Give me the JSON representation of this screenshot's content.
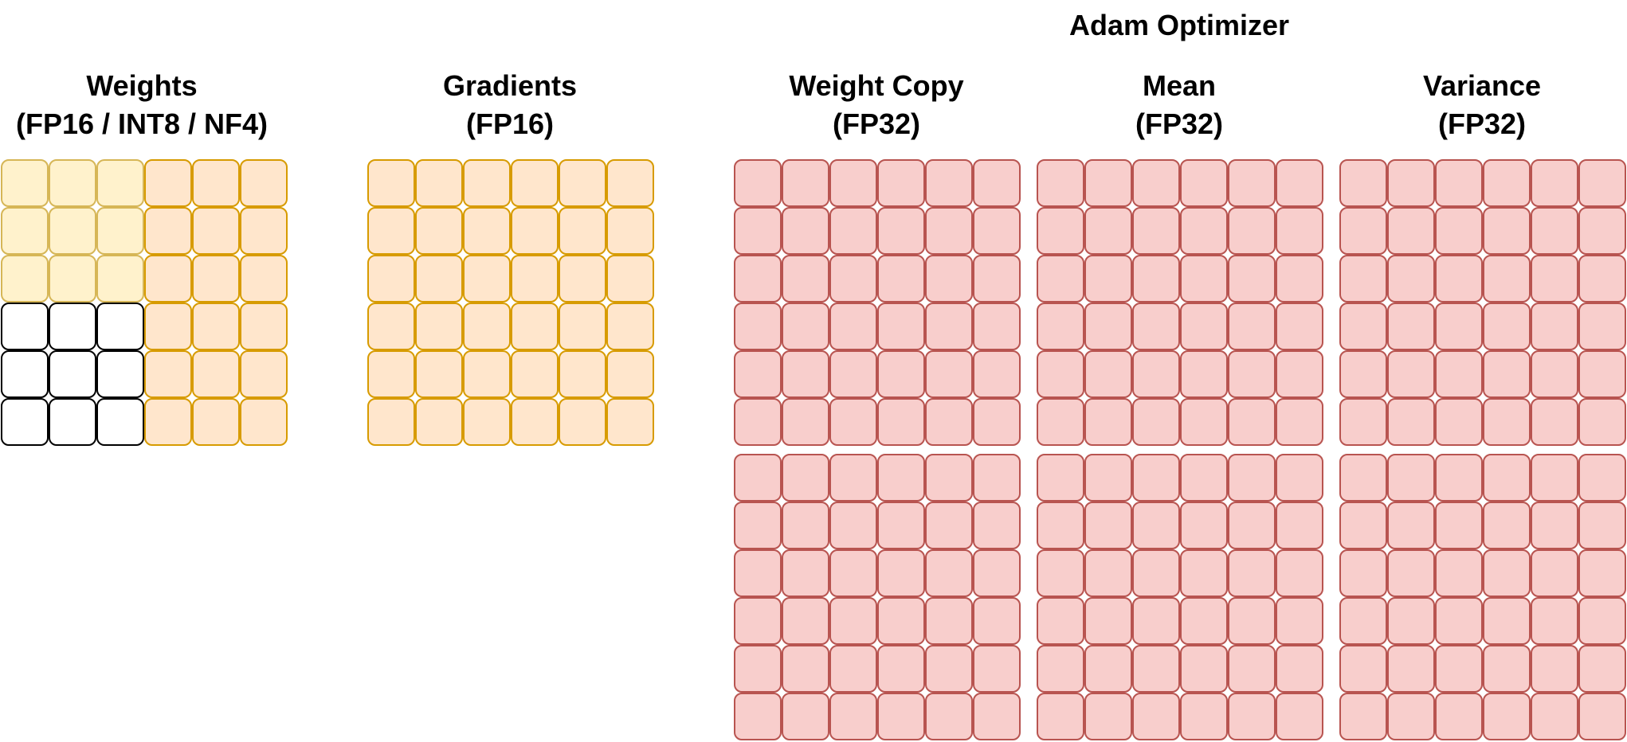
{
  "colors": {
    "weights_light_fill": "#fff2cc",
    "weights_light_stroke": "#d6b656",
    "orange_fill": "#ffe6cc",
    "orange_stroke": "#d79b00",
    "white_fill": "#ffffff",
    "white_stroke": "#000000",
    "red_fill": "#f8cecc",
    "red_stroke": "#b85450"
  },
  "titles": {
    "adam": "Adam Optimizer",
    "weights_line1": "Weights",
    "weights_line2": "(FP16 / INT8 / NF4)",
    "gradients_line1": "Gradients",
    "gradients_line2": "(FP16)",
    "weight_copy_line1": "Weight Copy",
    "weight_copy_line2": "(FP32)",
    "mean_line1": "Mean",
    "mean_line2": "(FP32)",
    "variance_line1": "Variance",
    "variance_line2": "(FP32)"
  },
  "grids": [
    {
      "name": "weights-grid",
      "rows": 6,
      "cols": 6,
      "cell_colors": [
        [
          "light",
          "light",
          "light",
          "orange",
          "orange",
          "orange"
        ],
        [
          "light",
          "light",
          "light",
          "orange",
          "orange",
          "orange"
        ],
        [
          "light",
          "light",
          "light",
          "orange",
          "orange",
          "orange"
        ],
        [
          "white",
          "white",
          "white",
          "orange",
          "orange",
          "orange"
        ],
        [
          "white",
          "white",
          "white",
          "orange",
          "orange",
          "orange"
        ],
        [
          "white",
          "white",
          "white",
          "orange",
          "orange",
          "orange"
        ]
      ]
    },
    {
      "name": "gradients-grid",
      "rows": 6,
      "cols": 6,
      "fill": "orange"
    },
    {
      "name": "weight-copy-grid",
      "rows": 12,
      "cols": 6,
      "fill": "red"
    },
    {
      "name": "mean-grid",
      "rows": 12,
      "cols": 6,
      "fill": "red"
    },
    {
      "name": "variance-grid",
      "rows": 12,
      "cols": 6,
      "fill": "red"
    }
  ]
}
